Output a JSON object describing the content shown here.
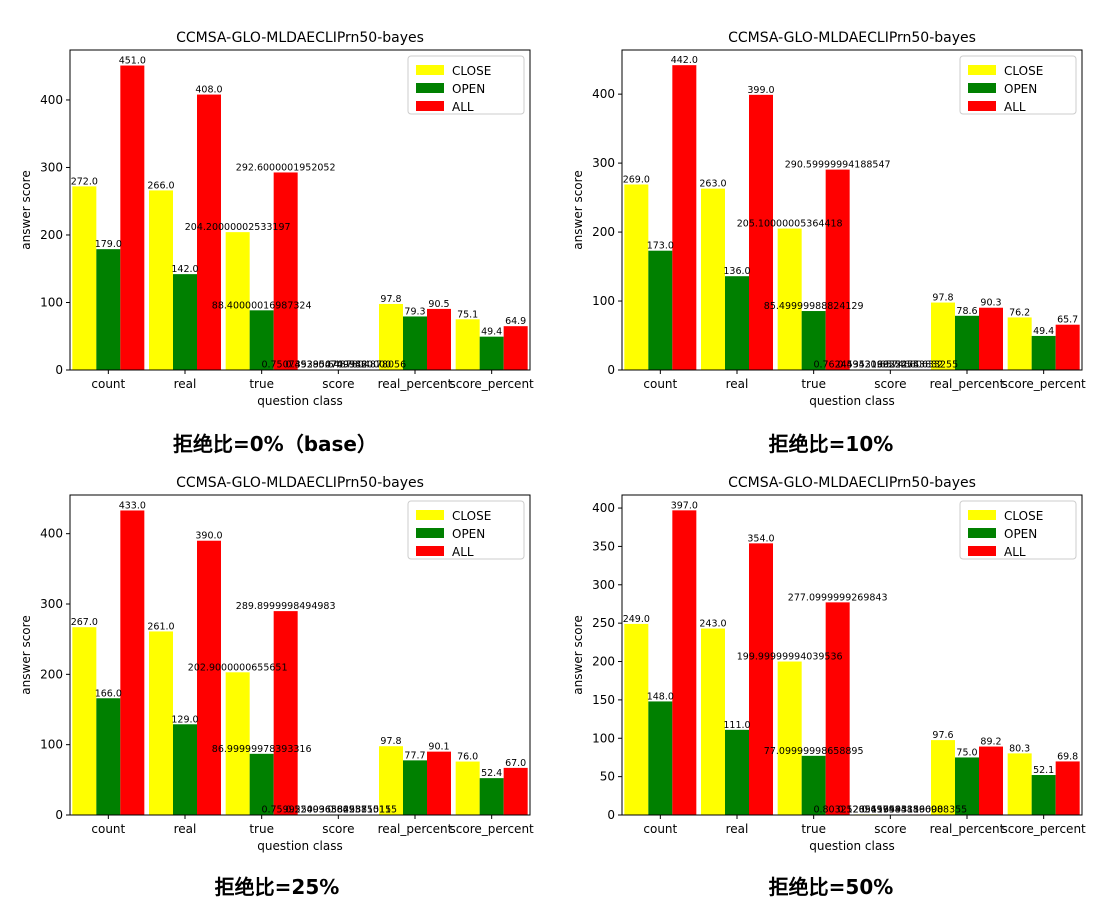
{
  "colors": {
    "CLOSE": "#ffff00",
    "OPEN": "#008000",
    "ALL": "#ff0000"
  },
  "chart_data": [
    {
      "type": "bar",
      "title": "CCMSA-GLO-MLDAECLIPrn50-bayes",
      "caption": "拒绝比=0%（base）",
      "xlabel": "question class",
      "ylabel": "answer score",
      "categories": [
        "count",
        "real",
        "true",
        "score",
        "real_percent",
        "score_percent"
      ],
      "yticks": [
        "0",
        "100",
        "200",
        "300",
        "400"
      ],
      "ylim": [
        0,
        474
      ],
      "legend_position": "upper right",
      "series": [
        {
          "name": "CLOSE",
          "values": [
            272.0,
            266.0,
            204.20000002533197,
            0.75,
            97.8,
            75.1
          ],
          "labels": [
            "272.0",
            "266.0",
            "204.20000002533197",
            "0.7507352950709932",
            "97.8",
            "75.1"
          ]
        },
        {
          "name": "OPEN",
          "values": [
            179.0,
            142.0,
            88.40000016987324,
            0.49,
            79.3,
            49.4
          ],
          "labels": [
            "179.0",
            "142.0",
            "88.40000016987324",
            "0.4938547495460000",
            "79.3",
            "49.4"
          ]
        },
        {
          "name": "ALL",
          "values": [
            451.0,
            408.0,
            292.6000001952052,
            0.65,
            90.5,
            64.9
          ],
          "labels": [
            "451.0",
            "408.0",
            "292.6000001952052",
            "0.6487804878056",
            "90.5",
            "64.9"
          ]
        }
      ]
    },
    {
      "type": "bar",
      "title": "CCMSA-GLO-MLDAECLIPrn50-bayes",
      "caption": "拒绝比=10%",
      "xlabel": "question class",
      "ylabel": "answer score",
      "categories": [
        "count",
        "real",
        "true",
        "score",
        "real_percent",
        "score_percent"
      ],
      "yticks": [
        "0",
        "100",
        "200",
        "300",
        "400"
      ],
      "ylim": [
        0,
        464
      ],
      "legend_position": "upper right",
      "series": [
        {
          "name": "CLOSE",
          "values": [
            269.0,
            263.0,
            205.10000005364418,
            0.76,
            97.8,
            76.2
          ],
          "labels": [
            "269.0",
            "263.0",
            "205.10000005364418",
            "0.7624535316925254",
            "97.8",
            "76.2"
          ]
        },
        {
          "name": "OPEN",
          "values": [
            173.0,
            136.0,
            85.49999988824129,
            0.49,
            78.6,
            49.4
          ],
          "labels": [
            "173.0",
            "136.0",
            "85.49999988824129",
            "0.4942196524753832",
            "78.6",
            "49.4"
          ]
        },
        {
          "name": "ALL",
          "values": [
            442.0,
            399.0,
            290.59999994188547,
            0.66,
            90.3,
            65.7
          ],
          "labels": [
            "442.0",
            "399.0",
            "290.59999994188547",
            "0.6574660633255",
            "90.3",
            "65.7"
          ]
        }
      ]
    },
    {
      "type": "bar",
      "title": "CCMSA-GLO-MLDAECLIPrn50-bayes",
      "caption": "拒绝比=25%",
      "xlabel": "question class",
      "ylabel": "answer score",
      "categories": [
        "count",
        "real",
        "true",
        "score",
        "real_percent",
        "score_percent"
      ],
      "yticks": [
        "0",
        "100",
        "200",
        "300",
        "400"
      ],
      "ylim": [
        0,
        455
      ],
      "legend_position": "upper right",
      "series": [
        {
          "name": "CLOSE",
          "values": [
            267.0,
            261.0,
            202.9000000655651,
            0.76,
            97.8,
            76.0
          ],
          "labels": [
            "267.0",
            "261.0",
            "202.9000000655651",
            "0.7599250936582587",
            "97.8",
            "76.0"
          ]
        },
        {
          "name": "OPEN",
          "values": [
            166.0,
            129.0,
            86.99999978393316,
            0.52,
            77.7,
            52.4
          ],
          "labels": [
            "166.0",
            "129.0",
            "86.99999978393316",
            "0.5240963842381515",
            "77.7",
            "52.4"
          ]
        },
        {
          "name": "ALL",
          "values": [
            433.0,
            390.0,
            289.8999998494983,
            0.67,
            90.1,
            67.0
          ],
          "labels": [
            "433.0",
            "390.0",
            "289.8999998494983",
            "0.6695150115",
            "90.1",
            "67.0"
          ]
        }
      ]
    },
    {
      "type": "bar",
      "title": "CCMSA-GLO-MLDAECLIPrn50-bayes",
      "caption": "拒绝比=50%",
      "xlabel": "question class",
      "ylabel": "answer score",
      "categories": [
        "count",
        "real",
        "true",
        "score",
        "real_percent",
        "score_percent"
      ],
      "yticks": [
        "0",
        "50",
        "100",
        "150",
        "200",
        "250",
        "300",
        "350",
        "400"
      ],
      "ylim": [
        0,
        417
      ],
      "legend_position": "upper right",
      "series": [
        {
          "name": "CLOSE",
          "values": [
            249.0,
            243.0,
            199.99999994039536,
            0.8,
            97.6,
            80.3
          ],
          "labels": [
            "249.0",
            "243.0",
            "199.99999994039536",
            "0.8032128511659315",
            "97.6",
            "80.3"
          ]
        },
        {
          "name": "OPEN",
          "values": [
            148.0,
            111.0,
            77.09999998658895,
            0.52,
            75.0,
            52.1
          ],
          "labels": [
            "148.0",
            "111.0",
            "77.09999998658895",
            "0.5209459445119000",
            "75.0",
            "52.1"
          ]
        },
        {
          "name": "ALL",
          "values": [
            397.0,
            354.0,
            277.0999999269843,
            0.7,
            89.2,
            69.8
          ],
          "labels": [
            "397.0",
            "354.0",
            "277.0999999269843",
            "0.6979848866988355",
            "89.2",
            "69.8"
          ]
        }
      ]
    }
  ]
}
